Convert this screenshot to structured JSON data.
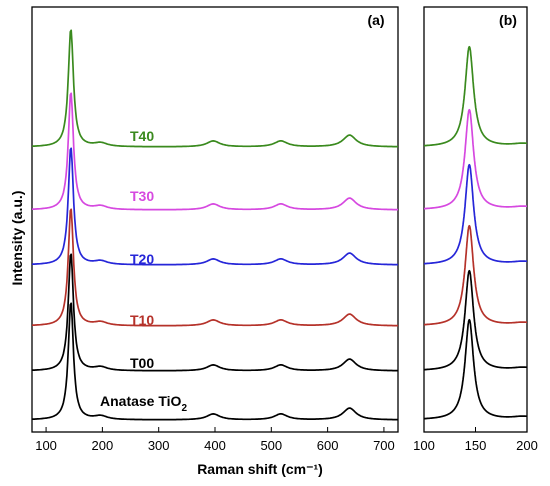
{
  "chart_data": {
    "type": "line",
    "ylabel": "Intensity (a.u.)",
    "y_ticks_shown": false,
    "series": [
      {
        "name": "Anatase TiO",
        "subscript": "2",
        "color": "#000000",
        "offset_level": 0
      },
      {
        "name": "T00",
        "color": "#000000",
        "offset_level": 1
      },
      {
        "name": "T10",
        "color": "#b5322a",
        "offset_level": 2
      },
      {
        "name": "T20",
        "color": "#2626d8",
        "offset_level": 3
      },
      {
        "name": "T30",
        "color": "#d649e0",
        "offset_level": 4
      },
      {
        "name": "T40",
        "color": "#3a8a1e",
        "offset_level": 5
      }
    ],
    "peaks": [
      {
        "x": 144,
        "rel_height": 1.0
      },
      {
        "x": 197,
        "rel_height": 0.03
      },
      {
        "x": 397,
        "rel_height": 0.05
      },
      {
        "x": 517,
        "rel_height": 0.05
      },
      {
        "x": 639,
        "rel_height": 0.1
      }
    ],
    "panels": [
      {
        "label": "(a)",
        "xlabel": "Raman shift (cm⁻¹)",
        "xlim": [
          75,
          725
        ],
        "xticks": [
          100,
          200,
          300,
          400,
          500,
          600,
          700
        ]
      },
      {
        "label": "(b)",
        "xlabel": "",
        "xlim": [
          100,
          200
        ],
        "xticks": [
          100,
          150,
          200
        ]
      }
    ]
  }
}
